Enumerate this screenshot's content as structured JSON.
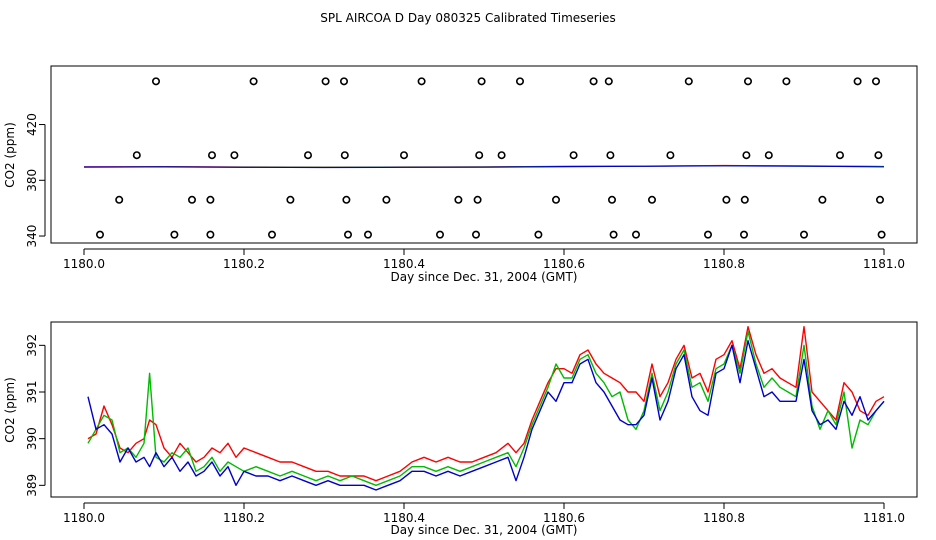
{
  "title": "SPL AIRCOA D  Day 080325  Calibrated Timeseries",
  "chart_data": [
    {
      "type": "scatter+line",
      "xlabel": "Day since Dec. 31, 2004 (GMT)",
      "ylabel": "CO2 (ppm)",
      "xlim": [
        1180.0,
        1181.0
      ],
      "ylim": [
        335,
        462
      ],
      "xticks": [
        "1180.0",
        "1180.2",
        "1180.4",
        "1180.6",
        "1180.8",
        "1181.0"
      ],
      "yticks": [
        "340",
        "380",
        "420"
      ],
      "ytick_values": [
        340,
        380,
        420
      ],
      "xtick_values": [
        1180.0,
        1180.2,
        1180.4,
        1180.6,
        1180.8,
        1181.0
      ],
      "points": [
        [
          1180.09,
          451
        ],
        [
          1180.212,
          451
        ],
        [
          1180.302,
          451
        ],
        [
          1180.325,
          451
        ],
        [
          1180.422,
          451
        ],
        [
          1180.497,
          451
        ],
        [
          1180.545,
          451
        ],
        [
          1180.637,
          451
        ],
        [
          1180.656,
          451
        ],
        [
          1180.756,
          451
        ],
        [
          1180.83,
          451
        ],
        [
          1180.878,
          451
        ],
        [
          1180.967,
          451
        ],
        [
          1180.99,
          451
        ],
        [
          1180.066,
          398
        ],
        [
          1180.16,
          398
        ],
        [
          1180.188,
          398
        ],
        [
          1180.28,
          398
        ],
        [
          1180.326,
          398
        ],
        [
          1180.4,
          398
        ],
        [
          1180.494,
          398
        ],
        [
          1180.522,
          398
        ],
        [
          1180.612,
          398
        ],
        [
          1180.658,
          398
        ],
        [
          1180.733,
          398
        ],
        [
          1180.828,
          398
        ],
        [
          1180.856,
          398
        ],
        [
          1180.945,
          398
        ],
        [
          1180.993,
          398
        ],
        [
          1180.044,
          366
        ],
        [
          1180.135,
          366
        ],
        [
          1180.158,
          366
        ],
        [
          1180.258,
          366
        ],
        [
          1180.328,
          366
        ],
        [
          1180.378,
          366
        ],
        [
          1180.468,
          366
        ],
        [
          1180.492,
          366
        ],
        [
          1180.59,
          366
        ],
        [
          1180.66,
          366
        ],
        [
          1180.71,
          366
        ],
        [
          1180.803,
          366
        ],
        [
          1180.826,
          366
        ],
        [
          1180.923,
          366
        ],
        [
          1180.995,
          366
        ],
        [
          1180.02,
          341
        ],
        [
          1180.113,
          341
        ],
        [
          1180.158,
          341
        ],
        [
          1180.235,
          341
        ],
        [
          1180.33,
          341
        ],
        [
          1180.355,
          341
        ],
        [
          1180.445,
          341
        ],
        [
          1180.49,
          341
        ],
        [
          1180.568,
          341
        ],
        [
          1180.662,
          341
        ],
        [
          1180.69,
          341
        ],
        [
          1180.78,
          341
        ],
        [
          1180.825,
          341
        ],
        [
          1180.9,
          341
        ],
        [
          1180.997,
          341
        ]
      ],
      "series": [
        {
          "name": "red",
          "color": "#ff0000",
          "x": [
            1180.0,
            1180.1,
            1180.2,
            1180.3,
            1180.4,
            1180.5,
            1180.6,
            1180.7,
            1180.8,
            1180.9,
            1181.0
          ],
          "values": [
            389.6,
            389.8,
            389.5,
            389.4,
            389.5,
            389.6,
            390.0,
            390.2,
            390.6,
            390.3,
            389.9
          ]
        },
        {
          "name": "green",
          "color": "#00bb00",
          "x": [
            1180.0,
            1180.1,
            1180.2,
            1180.3,
            1180.4,
            1180.5,
            1180.6,
            1180.7,
            1180.8,
            1180.9,
            1181.0
          ],
          "values": [
            389.4,
            389.7,
            389.4,
            389.3,
            389.4,
            389.5,
            389.9,
            390.1,
            390.5,
            390.2,
            389.8
          ]
        },
        {
          "name": "blue",
          "color": "#0000cc",
          "x": [
            1180.0,
            1180.1,
            1180.2,
            1180.3,
            1180.4,
            1180.5,
            1180.6,
            1180.7,
            1180.8,
            1180.9,
            1181.0
          ],
          "values": [
            389.5,
            389.6,
            389.3,
            389.2,
            389.3,
            389.4,
            389.8,
            390.0,
            390.4,
            390.1,
            389.7
          ]
        }
      ]
    },
    {
      "type": "line",
      "xlabel": "Day since Dec. 31, 2004 (GMT)",
      "ylabel": "CO2 (ppm)",
      "xlim": [
        1179.997,
        1181.003
      ],
      "ylim": [
        388.75,
        392.5
      ],
      "xticks": [
        "1180.0",
        "1180.2",
        "1180.4",
        "1180.6",
        "1180.8",
        "1181.0"
      ],
      "xtick_values": [
        1180.0,
        1180.2,
        1180.4,
        1180.6,
        1180.8,
        1181.0
      ],
      "yticks": [
        "389",
        "390",
        "391",
        "392"
      ],
      "ytick_values": [
        389,
        390,
        391,
        392
      ],
      "series": [
        {
          "name": "red",
          "color": "#ff0000",
          "x": [
            1180.005,
            1180.015,
            1180.025,
            1180.035,
            1180.045,
            1180.055,
            1180.065,
            1180.075,
            1180.082,
            1180.09,
            1180.1,
            1180.11,
            1180.12,
            1180.13,
            1180.14,
            1180.15,
            1180.16,
            1180.17,
            1180.18,
            1180.19,
            1180.2,
            1180.215,
            1180.23,
            1180.245,
            1180.26,
            1180.275,
            1180.29,
            1180.305,
            1180.32,
            1180.335,
            1180.35,
            1180.365,
            1180.38,
            1180.395,
            1180.41,
            1180.425,
            1180.44,
            1180.455,
            1180.47,
            1180.485,
            1180.5,
            1180.515,
            1180.53,
            1180.54,
            1180.55,
            1180.56,
            1180.57,
            1180.58,
            1180.59,
            1180.6,
            1180.61,
            1180.62,
            1180.63,
            1180.64,
            1180.65,
            1180.66,
            1180.67,
            1180.68,
            1180.69,
            1180.7,
            1180.71,
            1180.72,
            1180.73,
            1180.74,
            1180.75,
            1180.76,
            1180.77,
            1180.78,
            1180.79,
            1180.8,
            1180.81,
            1180.82,
            1180.83,
            1180.84,
            1180.85,
            1180.86,
            1180.87,
            1180.88,
            1180.89,
            1180.9,
            1180.91,
            1180.92,
            1180.93,
            1180.94,
            1180.95,
            1180.96,
            1180.97,
            1180.98,
            1180.99,
            1181.0
          ],
          "values": [
            390.0,
            390.1,
            390.7,
            390.3,
            389.8,
            389.7,
            389.9,
            390.0,
            390.4,
            390.3,
            389.8,
            389.6,
            389.9,
            389.7,
            389.5,
            389.6,
            389.8,
            389.7,
            389.9,
            389.6,
            389.8,
            389.7,
            389.6,
            389.5,
            389.5,
            389.4,
            389.3,
            389.3,
            389.2,
            389.2,
            389.2,
            389.1,
            389.2,
            389.3,
            389.5,
            389.6,
            389.5,
            389.6,
            389.5,
            389.5,
            389.6,
            389.7,
            389.9,
            389.7,
            389.9,
            390.4,
            390.8,
            391.2,
            391.5,
            391.5,
            391.4,
            391.8,
            391.9,
            391.6,
            391.4,
            391.3,
            391.2,
            391.0,
            391.0,
            390.8,
            391.6,
            390.9,
            391.2,
            391.7,
            392.0,
            391.3,
            391.4,
            391.0,
            391.7,
            391.8,
            392.1,
            391.5,
            392.4,
            391.8,
            391.4,
            391.5,
            391.3,
            391.2,
            391.1,
            392.4,
            391.0,
            390.8,
            390.6,
            390.4,
            391.2,
            391.0,
            390.6,
            390.5,
            390.8,
            390.9
          ]
        },
        {
          "name": "green",
          "color": "#00bb00",
          "x": [
            1180.005,
            1180.015,
            1180.025,
            1180.035,
            1180.045,
            1180.055,
            1180.065,
            1180.075,
            1180.082,
            1180.09,
            1180.1,
            1180.11,
            1180.12,
            1180.13,
            1180.14,
            1180.15,
            1180.16,
            1180.17,
            1180.18,
            1180.19,
            1180.2,
            1180.215,
            1180.23,
            1180.245,
            1180.26,
            1180.275,
            1180.29,
            1180.305,
            1180.32,
            1180.335,
            1180.35,
            1180.365,
            1180.38,
            1180.395,
            1180.41,
            1180.425,
            1180.44,
            1180.455,
            1180.47,
            1180.485,
            1180.5,
            1180.515,
            1180.53,
            1180.54,
            1180.55,
            1180.56,
            1180.57,
            1180.58,
            1180.59,
            1180.6,
            1180.61,
            1180.62,
            1180.63,
            1180.64,
            1180.65,
            1180.66,
            1180.67,
            1180.68,
            1180.69,
            1180.7,
            1180.71,
            1180.72,
            1180.73,
            1180.74,
            1180.75,
            1180.76,
            1180.77,
            1180.78,
            1180.79,
            1180.8,
            1180.81,
            1180.82,
            1180.83,
            1180.84,
            1180.85,
            1180.86,
            1180.87,
            1180.88,
            1180.89,
            1180.9,
            1180.91,
            1180.92,
            1180.93,
            1180.94,
            1180.95,
            1180.96,
            1180.97,
            1180.98,
            1180.99,
            1181.0
          ],
          "values": [
            389.9,
            390.2,
            390.5,
            390.4,
            389.7,
            389.8,
            389.6,
            389.9,
            391.4,
            389.6,
            389.5,
            389.7,
            389.6,
            389.8,
            389.3,
            389.4,
            389.6,
            389.3,
            389.5,
            389.4,
            389.3,
            389.4,
            389.3,
            389.2,
            389.3,
            389.2,
            389.1,
            389.2,
            389.1,
            389.2,
            389.1,
            389.0,
            389.1,
            389.2,
            389.4,
            389.4,
            389.3,
            389.4,
            389.3,
            389.4,
            389.5,
            389.6,
            389.7,
            389.4,
            389.8,
            390.3,
            390.7,
            391.1,
            391.6,
            391.3,
            391.3,
            391.7,
            391.8,
            391.4,
            391.2,
            390.9,
            391.0,
            390.4,
            390.2,
            390.6,
            391.4,
            390.6,
            391.0,
            391.6,
            391.9,
            391.1,
            391.2,
            390.8,
            391.5,
            391.6,
            392.0,
            391.4,
            392.3,
            391.6,
            391.1,
            391.3,
            391.1,
            391.0,
            390.9,
            392.0,
            390.7,
            390.2,
            390.6,
            390.3,
            391.0,
            389.8,
            390.4,
            390.3,
            390.6,
            390.8
          ]
        },
        {
          "name": "blue",
          "color": "#0000cc",
          "x": [
            1180.005,
            1180.015,
            1180.025,
            1180.035,
            1180.045,
            1180.055,
            1180.065,
            1180.075,
            1180.082,
            1180.09,
            1180.1,
            1180.11,
            1180.12,
            1180.13,
            1180.14,
            1180.15,
            1180.16,
            1180.17,
            1180.18,
            1180.19,
            1180.2,
            1180.215,
            1180.23,
            1180.245,
            1180.26,
            1180.275,
            1180.29,
            1180.305,
            1180.32,
            1180.335,
            1180.35,
            1180.365,
            1180.38,
            1180.395,
            1180.41,
            1180.425,
            1180.44,
            1180.455,
            1180.47,
            1180.485,
            1180.5,
            1180.515,
            1180.53,
            1180.54,
            1180.55,
            1180.56,
            1180.57,
            1180.58,
            1180.59,
            1180.6,
            1180.61,
            1180.62,
            1180.63,
            1180.64,
            1180.65,
            1180.66,
            1180.67,
            1180.68,
            1180.69,
            1180.7,
            1180.71,
            1180.72,
            1180.73,
            1180.74,
            1180.75,
            1180.76,
            1180.77,
            1180.78,
            1180.79,
            1180.8,
            1180.81,
            1180.82,
            1180.83,
            1180.84,
            1180.85,
            1180.86,
            1180.87,
            1180.88,
            1180.89,
            1180.9,
            1180.91,
            1180.92,
            1180.93,
            1180.94,
            1180.95,
            1180.96,
            1180.97,
            1180.98,
            1180.99,
            1181.0
          ],
          "values": [
            390.9,
            390.2,
            390.3,
            390.1,
            389.5,
            389.8,
            389.5,
            389.6,
            389.4,
            389.7,
            389.4,
            389.6,
            389.3,
            389.5,
            389.2,
            389.3,
            389.5,
            389.2,
            389.4,
            389.0,
            389.3,
            389.2,
            389.2,
            389.1,
            389.2,
            389.1,
            389.0,
            389.1,
            389.0,
            389.0,
            389.0,
            388.9,
            389.0,
            389.1,
            389.3,
            389.3,
            389.2,
            389.3,
            389.2,
            389.3,
            389.4,
            389.5,
            389.6,
            389.1,
            389.6,
            390.2,
            390.6,
            391.0,
            390.8,
            391.2,
            391.2,
            391.6,
            391.7,
            391.2,
            391.0,
            390.7,
            390.4,
            390.3,
            390.3,
            390.5,
            391.3,
            390.4,
            390.8,
            391.5,
            391.8,
            390.9,
            390.6,
            390.5,
            391.4,
            391.5,
            392.0,
            391.2,
            392.1,
            391.5,
            390.9,
            391.0,
            390.8,
            390.8,
            390.8,
            391.7,
            390.6,
            390.3,
            390.4,
            390.2,
            390.8,
            390.5,
            390.9,
            390.4,
            390.6,
            390.8
          ]
        }
      ]
    }
  ]
}
